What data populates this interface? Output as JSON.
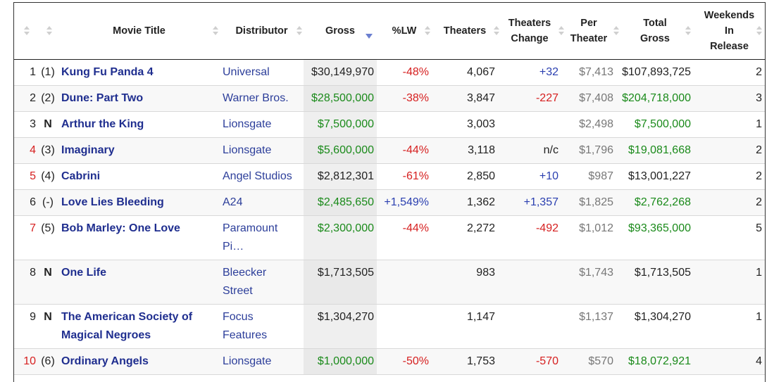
{
  "table": {
    "headers": {
      "title": "Movie Title",
      "distributor": "Distributor",
      "gross": "Gross",
      "lw": "%LW",
      "theaters": "Theaters",
      "theaters_change_1": "Theaters",
      "theaters_change_2": "Change",
      "per_theater_1": "Per",
      "per_theater_2": "Theater",
      "total_gross_1": "Total",
      "total_gross_2": "Gross",
      "weekends_1": "Weekends",
      "weekends_2": "In",
      "weekends_3": "Release"
    },
    "colors": {
      "green": "#1a8a1a",
      "red": "#d62020",
      "blue": "#2a3fb0",
      "link": "#1f2e8f"
    },
    "rows": [
      {
        "rank": "1",
        "prev": "(1)",
        "title": "Kung Fu Panda 4",
        "dist1": "Universal",
        "dist2": "",
        "gross": "$30,149,970",
        "lw": "-48%",
        "theaters": "4,067",
        "change": "+32",
        "per": "$7,413",
        "total": "$107,893,725",
        "weeks": "2"
      },
      {
        "rank": "2",
        "prev": "(2)",
        "title": "Dune: Part Two",
        "dist1": "Warner Bros.",
        "dist2": "",
        "gross": "$28,500,000",
        "lw": "-38%",
        "theaters": "3,847",
        "change": "-227",
        "per": "$7,408",
        "total": "$204,718,000",
        "weeks": "3"
      },
      {
        "rank": "3",
        "prev": "N",
        "title": "Arthur the King",
        "dist1": "Lionsgate",
        "dist2": "",
        "gross": "$7,500,000",
        "lw": "",
        "theaters": "3,003",
        "change": "",
        "per": "$2,498",
        "total": "$7,500,000",
        "weeks": "1"
      },
      {
        "rank": "4",
        "prev": "(3)",
        "title": "Imaginary",
        "dist1": "Lionsgate",
        "dist2": "",
        "gross": "$5,600,000",
        "lw": "-44%",
        "theaters": "3,118",
        "change": "n/c",
        "per": "$1,796",
        "total": "$19,081,668",
        "weeks": "2"
      },
      {
        "rank": "5",
        "prev": "(4)",
        "title": "Cabrini",
        "dist1": "Angel Studios",
        "dist2": "",
        "gross": "$2,812,301",
        "lw": "-61%",
        "theaters": "2,850",
        "change": "+10",
        "per": "$987",
        "total": "$13,001,227",
        "weeks": "2"
      },
      {
        "rank": "6",
        "prev": "(-)",
        "title": "Love Lies Bleeding",
        "dist1": "A24",
        "dist2": "",
        "gross": "$2,485,650",
        "lw": "+1,549%",
        "theaters": "1,362",
        "change": "+1,357",
        "per": "$1,825",
        "total": "$2,762,268",
        "weeks": "2"
      },
      {
        "rank": "7",
        "prev": "(5)",
        "title": "Bob Marley: One Love",
        "dist1": "Paramount",
        "dist2": "Pi…",
        "gross": "$2,300,000",
        "lw": "-44%",
        "theaters": "2,272",
        "change": "-492",
        "per": "$1,012",
        "total": "$93,365,000",
        "weeks": "5"
      },
      {
        "rank": "8",
        "prev": "N",
        "title": "One Life",
        "dist1": "Bleecker",
        "dist2": "Street",
        "gross": "$1,713,505",
        "lw": "",
        "theaters": "983",
        "change": "",
        "per": "$1,743",
        "total": "$1,713,505",
        "weeks": "1"
      },
      {
        "rank": "9",
        "prev": "N",
        "title": "The American Society of Magical Negroes",
        "dist1": "Focus",
        "dist2": "Features",
        "gross": "$1,304,270",
        "lw": "",
        "theaters": "1,147",
        "change": "",
        "per": "$1,137",
        "total": "$1,304,270",
        "weeks": "1"
      },
      {
        "rank": "10",
        "prev": "(6)",
        "title": "Ordinary Angels",
        "dist1": "Lionsgate",
        "dist2": "",
        "gross": "$1,000,000",
        "lw": "-50%",
        "theaters": "1,753",
        "change": "-570",
        "per": "$570",
        "total": "$18,072,921",
        "weeks": "4"
      }
    ]
  }
}
